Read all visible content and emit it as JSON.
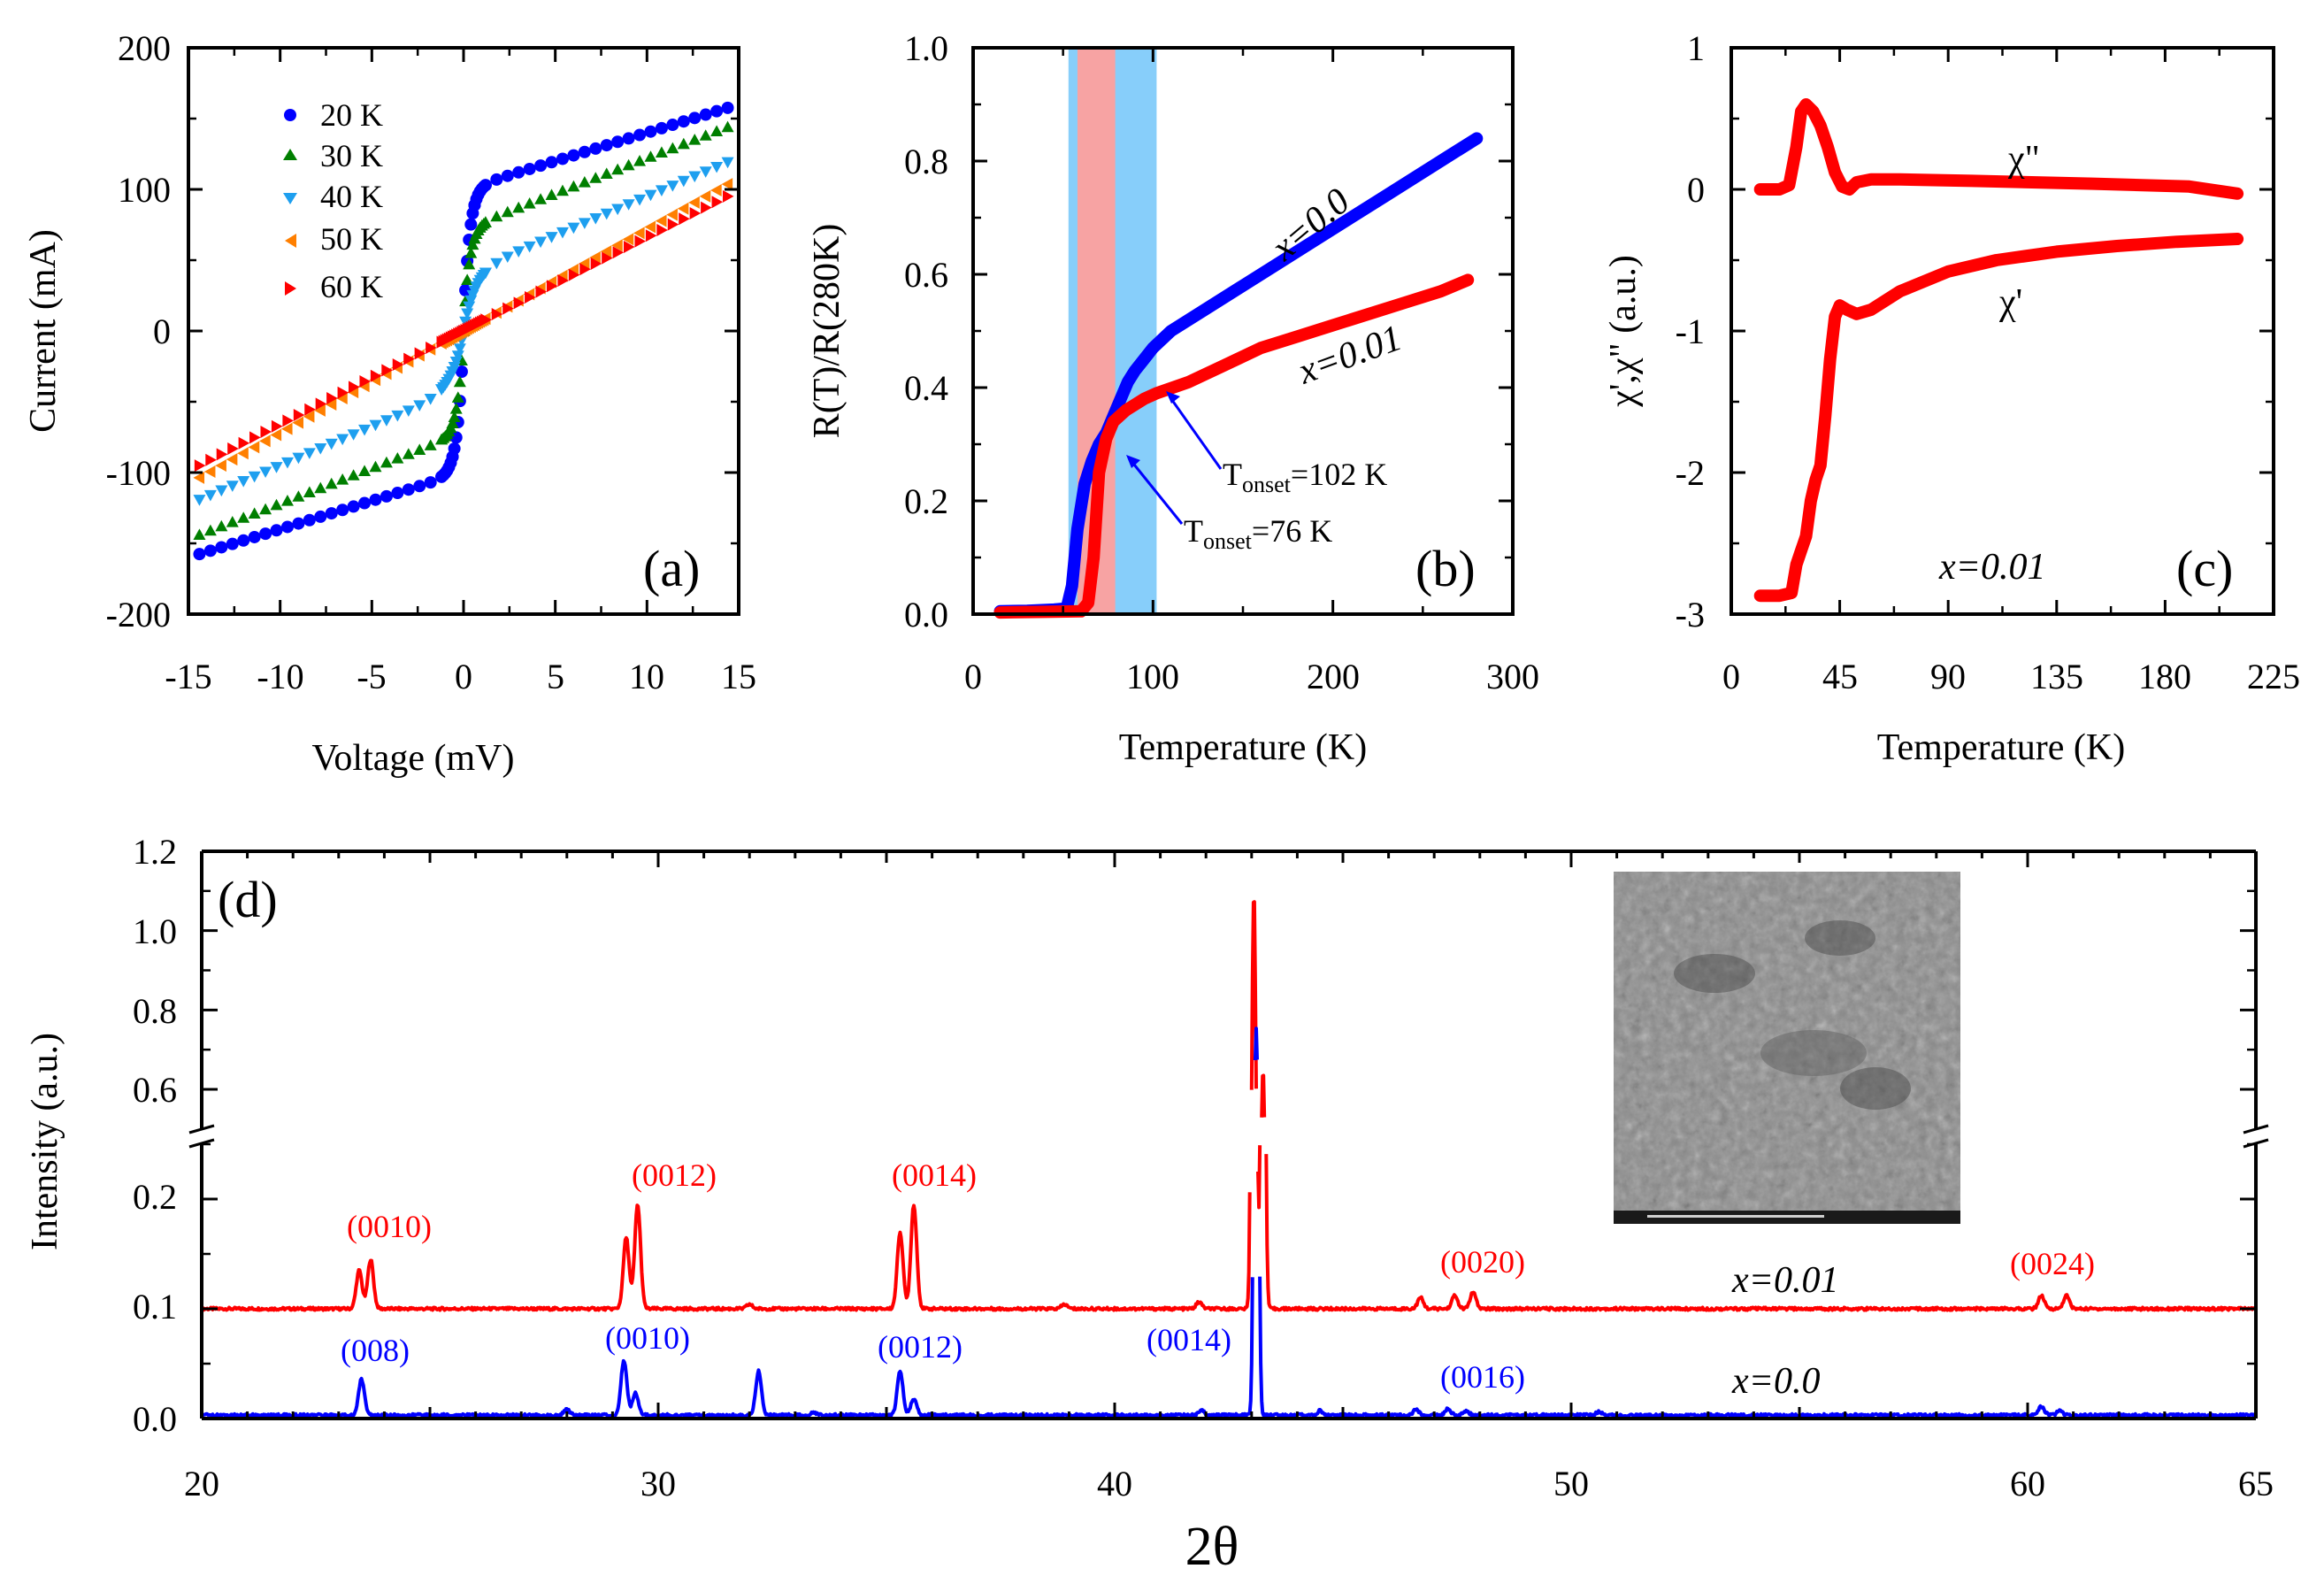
{
  "colors": {
    "blue": "#0000ff",
    "green": "#007f00",
    "cyan": "#1e9fef",
    "orange": "#ff7f00",
    "red": "#ff0000",
    "band_blue": "#87cefa",
    "band_red": "#f7a3a3"
  },
  "chart_data": [
    {
      "panel": "(a)",
      "type": "scatter",
      "xlabel": "Voltage (mV)",
      "ylabel": "Current (mA)",
      "xlim": [
        -15,
        15
      ],
      "ylim": [
        -200,
        200
      ],
      "xticks": [
        "-15",
        "-10",
        "-5",
        "0",
        "5",
        "10",
        "15"
      ],
      "yticks": [
        "200",
        "100",
        "0",
        "-100",
        "-200"
      ],
      "legend": [
        "20 K",
        "30 K",
        "40 K",
        "50 K",
        "60 K"
      ],
      "series": [
        {
          "name": "20 K",
          "marker": "circle",
          "color": "#0000ff",
          "params": {
            "a": 100,
            "b": 4,
            "k": 4.3,
            "s": 0.3
          }
        },
        {
          "name": "30 K",
          "marker": "triangle-up",
          "color": "#007f00",
          "params": {
            "a": 72,
            "b": 5,
            "k": 4.5,
            "s": 0.3
          }
        },
        {
          "name": "40 K",
          "marker": "triangle-down",
          "color": "#1e9fef",
          "params": {
            "a": 40,
            "b": 5.5,
            "k": 5.2,
            "s": 0.6
          }
        },
        {
          "name": "50 K",
          "marker": "triangle-left",
          "color": "#ff7f00",
          "params": {
            "a": 0,
            "b": 7.2,
            "k": 0,
            "s": 1
          }
        },
        {
          "name": "60 K",
          "marker": "triangle-right",
          "color": "#ff0000",
          "params": {
            "a": 0,
            "b": 6.6,
            "k": 0,
            "s": 1
          }
        }
      ]
    },
    {
      "panel": "(b)",
      "type": "line",
      "xlabel": "Temperature (K)",
      "ylabel": "R(T)/R(280K)",
      "xlim": [
        0,
        300
      ],
      "ylim": [
        0,
        1.0
      ],
      "xticks": [
        "0",
        "100",
        "200",
        "300"
      ],
      "yticks": [
        "1.0",
        "0.8",
        "0.6",
        "0.4",
        "0.2",
        "0.0"
      ],
      "bands": [
        {
          "from": 53,
          "to": 102,
          "color": "#87cefa"
        },
        {
          "from": 58,
          "to": 79,
          "color": "#f7a3a3"
        }
      ],
      "series": [
        {
          "name": "x=0.0",
          "color": "#0000ff",
          "points": [
            [
              15,
              0.005
            ],
            [
              30,
              0.006
            ],
            [
              45,
              0.008
            ],
            [
              52,
              0.01
            ],
            [
              55,
              0.05
            ],
            [
              58,
              0.15
            ],
            [
              62,
              0.23
            ],
            [
              66,
              0.27
            ],
            [
              70,
              0.3
            ],
            [
              74,
              0.32
            ],
            [
              78,
              0.35
            ],
            [
              82,
              0.38
            ],
            [
              86,
              0.41
            ],
            [
              90,
              0.43
            ],
            [
              95,
              0.45
            ],
            [
              100,
              0.47
            ],
            [
              110,
              0.5
            ],
            [
              130,
              0.54
            ],
            [
              150,
              0.58
            ],
            [
              170,
              0.62
            ],
            [
              190,
              0.66
            ],
            [
              210,
              0.7
            ],
            [
              230,
              0.74
            ],
            [
              250,
              0.78
            ],
            [
              265,
              0.81
            ],
            [
              280,
              0.84
            ]
          ]
        },
        {
          "name": "x=0.01",
          "color": "#ff0000",
          "points": [
            [
              15,
              0.003
            ],
            [
              40,
              0.004
            ],
            [
              60,
              0.005
            ],
            [
              64,
              0.02
            ],
            [
              67,
              0.1
            ],
            [
              70,
              0.25
            ],
            [
              74,
              0.31
            ],
            [
              78,
              0.34
            ],
            [
              85,
              0.36
            ],
            [
              95,
              0.38
            ],
            [
              102,
              0.39
            ],
            [
              120,
              0.41
            ],
            [
              140,
              0.44
            ],
            [
              160,
              0.47
            ],
            [
              180,
              0.49
            ],
            [
              200,
              0.51
            ],
            [
              220,
              0.53
            ],
            [
              240,
              0.55
            ],
            [
              260,
              0.57
            ],
            [
              275,
              0.59
            ]
          ]
        }
      ],
      "labels": [
        "x=0.0",
        "x=0.01"
      ],
      "annotations": [
        {
          "text_main": "T",
          "text_sub": "onset",
          "text_tail": "=102 K"
        },
        {
          "text_main": "T",
          "text_sub": "onset",
          "text_tail": "=76 K"
        }
      ]
    },
    {
      "panel": "(c)",
      "type": "line",
      "xlabel": "Temperature (K)",
      "ylabel": "χ',χ\" (a.u.)",
      "xlim": [
        0,
        225
      ],
      "ylim": [
        -3,
        1
      ],
      "xticks": [
        "0",
        "45",
        "90",
        "135",
        "180",
        "225"
      ],
      "yticks": [
        "1",
        "0",
        "-1",
        "-2",
        "-3"
      ],
      "series": [
        {
          "name": "χ\"",
          "color": "#ff0000",
          "points": [
            [
              12,
              0.0
            ],
            [
              20,
              0.0
            ],
            [
              24,
              0.03
            ],
            [
              27,
              0.3
            ],
            [
              29,
              0.55
            ],
            [
              31,
              0.6
            ],
            [
              34,
              0.55
            ],
            [
              37,
              0.45
            ],
            [
              40,
              0.3
            ],
            [
              43,
              0.12
            ],
            [
              46,
              0.02
            ],
            [
              49,
              0.0
            ],
            [
              52,
              0.05
            ],
            [
              58,
              0.07
            ],
            [
              70,
              0.07
            ],
            [
              100,
              0.06
            ],
            [
              150,
              0.04
            ],
            [
              190,
              0.02
            ],
            [
              210,
              -0.03
            ]
          ]
        },
        {
          "name": "χ'",
          "color": "#ff0000",
          "points": [
            [
              12,
              -2.87
            ],
            [
              20,
              -2.87
            ],
            [
              25,
              -2.85
            ],
            [
              27,
              -2.65
            ],
            [
              29,
              -2.55
            ],
            [
              31,
              -2.45
            ],
            [
              33,
              -2.2
            ],
            [
              35,
              -2.05
            ],
            [
              37,
              -1.95
            ],
            [
              39,
              -1.6
            ],
            [
              41,
              -1.2
            ],
            [
              43,
              -0.9
            ],
            [
              45,
              -0.82
            ],
            [
              48,
              -0.85
            ],
            [
              52,
              -0.88
            ],
            [
              58,
              -0.85
            ],
            [
              70,
              -0.72
            ],
            [
              90,
              -0.58
            ],
            [
              110,
              -0.5
            ],
            [
              135,
              -0.44
            ],
            [
              160,
              -0.4
            ],
            [
              185,
              -0.37
            ],
            [
              210,
              -0.35
            ]
          ]
        }
      ],
      "labels": [
        "χ\"",
        "χ'",
        "x=0.01"
      ]
    },
    {
      "panel": "(d)",
      "type": "line",
      "xlabel": "2θ",
      "ylabel": "Intensity (a.u.)",
      "xlim": [
        20,
        65
      ],
      "ylim_lower": [
        0,
        0.25
      ],
      "ylim_upper": [
        0.5,
        1.2
      ],
      "xticks": [
        "20",
        "30",
        "40",
        "50",
        "60",
        "65"
      ],
      "yticks": [
        "1.2",
        "1.0",
        "0.8",
        "0.6",
        "0.2",
        "0.1",
        "0.0"
      ],
      "series": [
        {
          "name": "x=0.01",
          "color": "#ff0000",
          "baseline": 0.1,
          "peaks": [
            [
              23.45,
              0.035
            ],
            [
              23.7,
              0.045
            ],
            [
              29.3,
              0.065
            ],
            [
              29.55,
              0.095
            ],
            [
              35.3,
              0.07
            ],
            [
              35.6,
              0.095
            ],
            [
              43.05,
              1.0
            ],
            [
              43.25,
              0.55
            ],
            [
              46.7,
              0.01
            ],
            [
              47.45,
              0.012
            ],
            [
              47.85,
              0.015
            ],
            [
              60.3,
              0.012
            ],
            [
              60.85,
              0.012
            ],
            [
              41.85,
              0.006
            ],
            [
              38.9,
              0.004
            ],
            [
              32.0,
              0.004
            ]
          ]
        },
        {
          "name": "x=0.0",
          "color": "#0000ff",
          "baseline": 0.003,
          "peaks": [
            [
              23.5,
              0.033
            ],
            [
              28.0,
              0.005
            ],
            [
              29.25,
              0.05
            ],
            [
              29.5,
              0.02
            ],
            [
              32.2,
              0.04
            ],
            [
              33.4,
              0.003
            ],
            [
              35.3,
              0.04
            ],
            [
              35.6,
              0.015
            ],
            [
              41.9,
              0.004
            ],
            [
              43.1,
              0.75
            ],
            [
              44.5,
              0.004
            ],
            [
              46.6,
              0.005
            ],
            [
              47.3,
              0.006
            ],
            [
              47.7,
              0.004
            ],
            [
              50.6,
              0.003
            ],
            [
              60.3,
              0.008
            ],
            [
              60.7,
              0.004
            ]
          ]
        }
      ],
      "peak_labels": {
        "red": [
          "(0010)",
          "(0012)",
          "(0014)",
          "(0020)",
          "(0024)"
        ],
        "blue": [
          "(008)",
          "(0010)",
          "(0012)",
          "(0014)",
          "(0016)"
        ]
      },
      "labels": [
        "x=0.01",
        "x=0.0"
      ]
    }
  ]
}
